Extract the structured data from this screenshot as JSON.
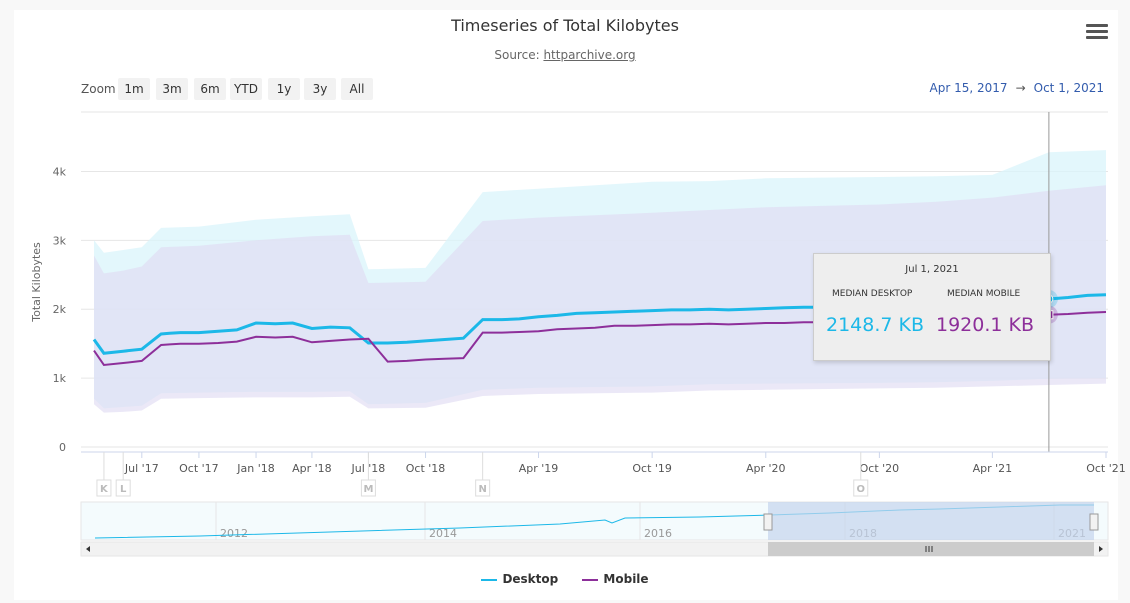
{
  "header": {
    "title": "Timeseries of Total Kilobytes",
    "source_prefix": "Source: ",
    "source_link": "httparchive.org",
    "menu_icon": "hamburger-menu-icon"
  },
  "zoom": {
    "label": "Zoom",
    "buttons": [
      "1m",
      "3m",
      "6m",
      "YTD",
      "1y",
      "3y",
      "All"
    ],
    "range_from": "Apr 15, 2017",
    "range_sep": "→",
    "range_to": "Oct 1, 2021"
  },
  "tooltip": {
    "date": "Jul 1, 2021",
    "desktop_label": "MEDIAN DESKTOP",
    "mobile_label": "MEDIAN MOBILE",
    "desktop_value": "2148.7 KB",
    "mobile_value": "1920.1 KB"
  },
  "legend": {
    "desktop": "Desktop",
    "mobile": "Mobile"
  },
  "colors": {
    "desktop": "#1cb8e8",
    "mobile": "#8d2f9a",
    "desktop_band": "#d9f4fb",
    "mobile_band": "#e1dcf3",
    "navigator_mask": "#c5d4ec"
  },
  "chart_data": {
    "type": "line",
    "title": "Timeseries of Total Kilobytes",
    "subtitle": "Source: httparchive.org",
    "ylabel": "Total Kilobytes",
    "ylim": [
      0,
      4500
    ],
    "y_ticks": [
      0,
      1000,
      2000,
      3000,
      4000
    ],
    "y_tick_labels": [
      "0",
      "1k",
      "2k",
      "3k",
      "4k"
    ],
    "x_range": [
      "2017-04-15",
      "2021-10-01"
    ],
    "x_ticks": [
      {
        "date": "2017-07-01",
        "label": "Jul '17"
      },
      {
        "date": "2017-10-01",
        "label": "Oct '17"
      },
      {
        "date": "2018-01-01",
        "label": "Jan '18"
      },
      {
        "date": "2018-04-01",
        "label": "Apr '18"
      },
      {
        "date": "2018-07-01",
        "label": "Jul '18"
      },
      {
        "date": "2018-10-01",
        "label": "Oct '18"
      },
      {
        "date": "2019-04-01",
        "label": "Apr '19"
      },
      {
        "date": "2019-10-01",
        "label": "Oct '19"
      },
      {
        "date": "2020-04-01",
        "label": "Apr '20"
      },
      {
        "date": "2020-10-01",
        "label": "Oct '20"
      },
      {
        "date": "2021-04-01",
        "label": "Apr '21"
      },
      {
        "date": "2021-10-01",
        "label": "Oct '21"
      }
    ],
    "flags": [
      {
        "date": "2017-05-01",
        "label": "K"
      },
      {
        "date": "2017-06-01",
        "label": "L"
      },
      {
        "date": "2018-07-01",
        "label": "M"
      },
      {
        "date": "2019-01-01",
        "label": "N"
      },
      {
        "date": "2020-09-01",
        "label": "O"
      }
    ],
    "series": [
      {
        "name": "Desktop",
        "x": [
          "2017-04-15",
          "2017-05-01",
          "2017-06-01",
          "2017-07-01",
          "2017-08-01",
          "2017-08-15",
          "2017-09-01",
          "2017-10-01",
          "2017-11-01",
          "2017-12-01",
          "2018-01-01",
          "2018-02-01",
          "2018-03-01",
          "2018-04-01",
          "2018-05-01",
          "2018-06-01",
          "2018-07-01",
          "2018-08-01",
          "2018-09-01",
          "2018-10-01",
          "2018-11-01",
          "2018-12-01",
          "2019-01-01",
          "2019-02-01",
          "2019-03-01",
          "2019-04-01",
          "2019-05-01",
          "2019-06-01",
          "2019-07-01",
          "2019-08-01",
          "2019-09-01",
          "2019-10-01",
          "2019-11-01",
          "2019-12-01",
          "2020-01-01",
          "2020-02-01",
          "2020-03-01",
          "2020-04-01",
          "2020-05-01",
          "2020-06-01",
          "2020-07-01",
          "2020-08-01",
          "2020-09-01",
          "2020-10-01",
          "2020-11-01",
          "2020-12-01",
          "2021-01-01",
          "2021-02-01",
          "2021-03-01",
          "2021-04-01",
          "2021-05-01",
          "2021-06-01",
          "2021-07-01",
          "2021-08-01",
          "2021-09-01",
          "2021-10-01"
        ],
        "values": [
          1560,
          1360,
          1390,
          1420,
          1640,
          1650,
          1660,
          1660,
          1680,
          1700,
          1800,
          1790,
          1800,
          1720,
          1740,
          1730,
          1510,
          1510,
          1520,
          1540,
          1560,
          1580,
          1850,
          1850,
          1860,
          1890,
          1910,
          1940,
          1950,
          1960,
          1970,
          1980,
          1990,
          1990,
          2000,
          1990,
          2000,
          2010,
          2020,
          2030,
          2030,
          2040,
          2050,
          2060,
          2060,
          2070,
          2080,
          2090,
          2100,
          2110,
          2120,
          2130,
          2148.7,
          2170,
          2200,
          2210
        ]
      },
      {
        "name": "Mobile",
        "x": [
          "2017-04-15",
          "2017-05-01",
          "2017-06-01",
          "2017-07-01",
          "2017-08-01",
          "2017-08-15",
          "2017-09-01",
          "2017-10-01",
          "2017-11-01",
          "2017-12-01",
          "2018-01-01",
          "2018-02-01",
          "2018-03-01",
          "2018-04-01",
          "2018-05-01",
          "2018-06-01",
          "2018-07-01",
          "2018-08-01",
          "2018-09-01",
          "2018-10-01",
          "2018-11-01",
          "2018-12-01",
          "2019-01-01",
          "2019-02-01",
          "2019-03-01",
          "2019-04-01",
          "2019-05-01",
          "2019-06-01",
          "2019-07-01",
          "2019-08-01",
          "2019-09-01",
          "2019-10-01",
          "2019-11-01",
          "2019-12-01",
          "2020-01-01",
          "2020-02-01",
          "2020-03-01",
          "2020-04-01",
          "2020-05-01",
          "2020-06-01",
          "2020-07-01",
          "2020-08-01",
          "2020-09-01",
          "2020-10-01",
          "2020-11-01",
          "2020-12-01",
          "2021-01-01",
          "2021-02-01",
          "2021-03-01",
          "2021-04-01",
          "2021-05-01",
          "2021-06-01",
          "2021-07-01",
          "2021-08-01",
          "2021-09-01",
          "2021-10-01"
        ],
        "values": [
          1400,
          1190,
          1220,
          1250,
          1480,
          1490,
          1500,
          1500,
          1510,
          1530,
          1600,
          1590,
          1600,
          1520,
          1540,
          1560,
          1570,
          1240,
          1250,
          1270,
          1280,
          1290,
          1660,
          1660,
          1670,
          1680,
          1710,
          1720,
          1730,
          1760,
          1760,
          1770,
          1780,
          1780,
          1790,
          1780,
          1790,
          1800,
          1800,
          1810,
          1810,
          1820,
          1830,
          1840,
          1840,
          1850,
          1860,
          1870,
          1880,
          1890,
          1900,
          1910,
          1920.1,
          1930,
          1950,
          1960
        ]
      }
    ],
    "bands": [
      {
        "name": "Desktop range",
        "x": [
          "2017-04-15",
          "2017-05-01",
          "2017-06-01",
          "2017-07-01",
          "2017-08-01",
          "2017-10-01",
          "2018-01-01",
          "2018-04-01",
          "2018-06-01",
          "2018-07-01",
          "2018-10-01",
          "2019-01-01",
          "2019-04-01",
          "2019-10-01",
          "2020-01-01",
          "2020-04-01",
          "2020-10-01",
          "2021-01-01",
          "2021-04-01",
          "2021-07-01",
          "2021-10-01"
        ],
        "low": [
          700,
          560,
          580,
          600,
          780,
          790,
          800,
          800,
          810,
          620,
          640,
          830,
          860,
          880,
          910,
          920,
          930,
          940,
          960,
          990,
          1000
        ],
        "high": [
          3000,
          2820,
          2860,
          2900,
          3180,
          3200,
          3300,
          3350,
          3380,
          2580,
          2600,
          3700,
          3750,
          3850,
          3860,
          3900,
          3920,
          3930,
          3950,
          4280,
          4310
        ]
      },
      {
        "name": "Mobile range",
        "x": [
          "2017-04-15",
          "2017-05-01",
          "2017-06-01",
          "2017-07-01",
          "2017-08-01",
          "2017-10-01",
          "2018-01-01",
          "2018-04-01",
          "2018-06-01",
          "2018-07-01",
          "2018-10-01",
          "2019-01-01",
          "2019-04-01",
          "2019-10-01",
          "2020-01-01",
          "2020-04-01",
          "2020-10-01",
          "2021-01-01",
          "2021-04-01",
          "2021-07-01",
          "2021-10-01"
        ],
        "low": [
          620,
          500,
          510,
          530,
          700,
          710,
          720,
          720,
          730,
          560,
          570,
          740,
          770,
          790,
          820,
          830,
          850,
          860,
          880,
          900,
          920
        ],
        "high": [
          2780,
          2520,
          2560,
          2620,
          2900,
          2920,
          3000,
          3060,
          3080,
          2380,
          2400,
          3280,
          3330,
          3400,
          3440,
          3480,
          3520,
          3560,
          3620,
          3720,
          3800
        ]
      }
    ],
    "navigator": {
      "year_labels": [
        "2012",
        "2014",
        "2016",
        "2018",
        "2021"
      ]
    }
  }
}
